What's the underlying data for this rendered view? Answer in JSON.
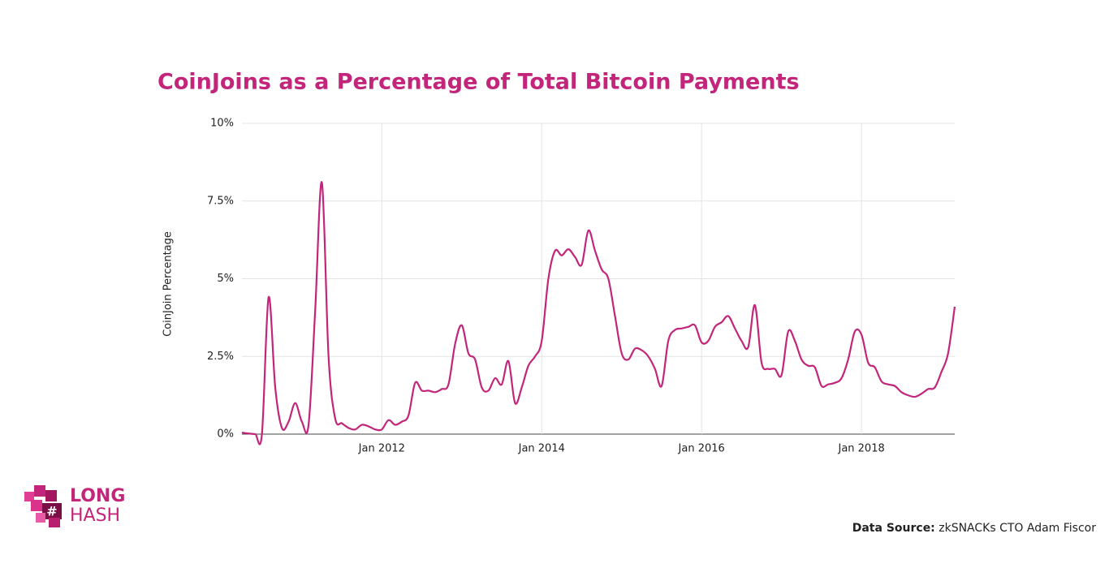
{
  "chart_data": {
    "type": "line",
    "title": "CoinJoins as a Percentage of Total Bitcoin Payments",
    "y_label": "CoinJoin Percentage",
    "x": [
      "2010-04",
      "2010-05",
      "2010-06",
      "2010-07",
      "2010-08",
      "2010-09",
      "2010-10",
      "2010-11",
      "2010-12",
      "2011-01",
      "2011-02",
      "2011-03",
      "2011-04",
      "2011-05",
      "2011-06",
      "2011-07",
      "2011-08",
      "2011-09",
      "2011-10",
      "2011-11",
      "2011-12",
      "2012-01",
      "2012-02",
      "2012-03",
      "2012-04",
      "2012-05",
      "2012-06",
      "2012-07",
      "2012-08",
      "2012-09",
      "2012-10",
      "2012-11",
      "2012-12",
      "2013-01",
      "2013-02",
      "2013-03",
      "2013-04",
      "2013-05",
      "2013-06",
      "2013-07",
      "2013-08",
      "2013-09",
      "2013-10",
      "2013-11",
      "2013-12",
      "2014-01",
      "2014-02",
      "2014-03",
      "2014-04",
      "2014-05",
      "2014-06",
      "2014-07",
      "2014-08",
      "2014-09",
      "2014-10",
      "2014-11",
      "2014-12",
      "2015-01",
      "2015-02",
      "2015-03",
      "2015-04",
      "2015-05",
      "2015-06",
      "2015-07",
      "2015-08",
      "2015-09",
      "2015-10",
      "2015-11",
      "2015-12",
      "2016-01",
      "2016-02",
      "2016-03",
      "2016-04",
      "2016-05",
      "2016-06",
      "2016-07",
      "2016-08",
      "2016-09",
      "2016-10",
      "2016-11",
      "2016-12",
      "2017-01",
      "2017-02",
      "2017-03",
      "2017-04",
      "2017-05",
      "2017-06",
      "2017-07",
      "2017-08",
      "2017-09",
      "2017-10",
      "2017-11",
      "2017-12",
      "2018-01",
      "2018-02",
      "2018-03",
      "2018-04",
      "2018-05",
      "2018-06",
      "2018-07",
      "2018-08",
      "2018-09",
      "2018-10",
      "2018-11",
      "2018-12",
      "2019-01",
      "2019-02",
      "2019-03"
    ],
    "series": [
      {
        "name": "CoinJoin Percentage",
        "color": "#c2257a",
        "values": [
          0.05,
          0.02,
          0,
          0,
          4.4,
          1.5,
          0.2,
          0.4,
          1.0,
          0.4,
          0.3,
          4.0,
          8.1,
          2.5,
          0.5,
          0.35,
          0.2,
          0.15,
          0.3,
          0.25,
          0.15,
          0.15,
          0.45,
          0.3,
          0.4,
          0.6,
          1.65,
          1.4,
          1.4,
          1.35,
          1.45,
          1.6,
          2.9,
          3.5,
          2.6,
          2.4,
          1.5,
          1.4,
          1.8,
          1.6,
          2.35,
          1.0,
          1.5,
          2.2,
          2.5,
          3.0,
          5.0,
          5.9,
          5.75,
          5.95,
          5.7,
          5.45,
          6.55,
          5.9,
          5.3,
          5.0,
          3.8,
          2.6,
          2.4,
          2.75,
          2.7,
          2.5,
          2.1,
          1.55,
          3.0,
          3.35,
          3.4,
          3.45,
          3.5,
          2.95,
          3.0,
          3.45,
          3.6,
          3.8,
          3.4,
          3.0,
          2.8,
          4.15,
          2.3,
          2.1,
          2.1,
          1.9,
          3.3,
          3.0,
          2.4,
          2.2,
          2.15,
          1.55,
          1.6,
          1.65,
          1.8,
          2.4,
          3.3,
          3.2,
          2.3,
          2.15,
          1.7,
          1.6,
          1.55,
          1.35,
          1.25,
          1.2,
          1.3,
          1.45,
          1.5,
          2.0,
          2.6,
          4.1
        ]
      }
    ],
    "xlim": [
      "2010-04",
      "2019-03"
    ],
    "xticks": [
      {
        "value": "2012-01",
        "label": "Jan 2012"
      },
      {
        "value": "2014-01",
        "label": "Jan 2014"
      },
      {
        "value": "2016-01",
        "label": "Jan 2016"
      },
      {
        "value": "2018-01",
        "label": "Jan 2018"
      }
    ],
    "ylim": [
      0,
      10
    ],
    "yticks": [
      {
        "value": 0,
        "label": "0%"
      },
      {
        "value": 2.5,
        "label": "2.5%"
      },
      {
        "value": 5,
        "label": "5%"
      },
      {
        "value": 7.5,
        "label": "7.5%"
      },
      {
        "value": 10,
        "label": "10%"
      }
    ],
    "grid": true
  },
  "logo": [
    "LONG",
    "HASH"
  ],
  "source": {
    "label": "Data Source:",
    "text": "zkSNACKs CTO Adam Fiscor"
  }
}
